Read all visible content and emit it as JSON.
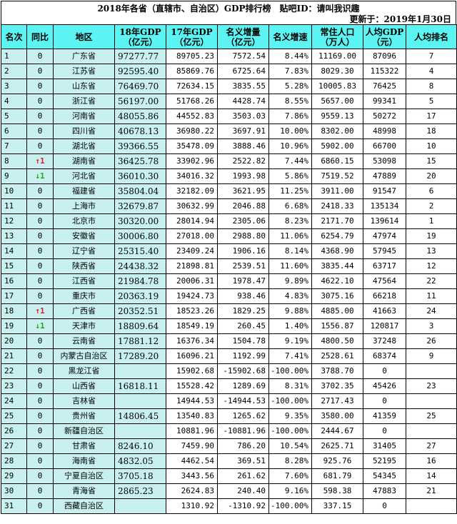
{
  "header": {
    "title": "2018年各省（直辖市、自治区）GDP排行榜　贴吧ID：请叫我识趣",
    "updated": "更新于：2019年1月30日"
  },
  "columns": {
    "rank": "名次",
    "yoy": "同比",
    "region": "地区",
    "gdp18_line1": "18年GDP",
    "gdp18_line2": "（亿元）",
    "gdp17_line1": "17年GDP",
    "gdp17_line2": "（亿元）",
    "inc_line1": "名义增量",
    "inc_line2": "（亿元）",
    "rate": "名义增速",
    "pop_line1": "常住人口",
    "pop_line2": "（万人）",
    "pc_line1": "人均GDP",
    "pc_line2": "（元）",
    "pcr": "人均排名"
  },
  "rows": [
    {
      "rank": "1",
      "yoy": "0",
      "region": "广东省",
      "gdp18": "97277.77",
      "gdp17": "89705.23",
      "inc": "7572.54",
      "rate": "8.44%",
      "pop": "11169.00",
      "pc": "87096",
      "pcr": "7"
    },
    {
      "rank": "2",
      "yoy": "0",
      "region": "江苏省",
      "gdp18": "92595.40",
      "gdp17": "85869.76",
      "inc": "6725.64",
      "rate": "7.83%",
      "pop": "8029.30",
      "pc": "115322",
      "pcr": "4"
    },
    {
      "rank": "3",
      "yoy": "0",
      "region": "山东省",
      "gdp18": "76469.70",
      "gdp17": "72634.15",
      "inc": "3835.55",
      "rate": "5.28%",
      "pop": "10005.83",
      "pc": "76425",
      "pcr": "8"
    },
    {
      "rank": "4",
      "yoy": "0",
      "region": "浙江省",
      "gdp18": "56197.00",
      "gdp17": "51768.26",
      "inc": "4428.74",
      "rate": "8.55%",
      "pop": "5657.00",
      "pc": "99341",
      "pcr": "5"
    },
    {
      "rank": "5",
      "yoy": "0",
      "region": "河南省",
      "gdp18": "48055.86",
      "gdp17": "44552.83",
      "inc": "3503.03",
      "rate": "7.86%",
      "pop": "9559.13",
      "pc": "50272",
      "pcr": "17"
    },
    {
      "rank": "6",
      "yoy": "0",
      "region": "四川省",
      "gdp18": "40678.13",
      "gdp17": "36980.22",
      "inc": "3697.91",
      "rate": "10.00%",
      "pop": "8302.00",
      "pc": "48998",
      "pcr": "18"
    },
    {
      "rank": "7",
      "yoy": "0",
      "region": "湖北省",
      "gdp18": "39366.55",
      "gdp17": "35478.09",
      "inc": "3888.46",
      "rate": "10.96%",
      "pop": "5902.00",
      "pc": "66700",
      "pcr": "10"
    },
    {
      "rank": "8",
      "yoy": "↑1",
      "yoy_dir": "up",
      "region": "湖南省",
      "gdp18": "36425.78",
      "gdp17": "33902.96",
      "inc": "2522.82",
      "rate": "7.44%",
      "pop": "6860.15",
      "pc": "53098",
      "pcr": "15"
    },
    {
      "rank": "9",
      "yoy": "↓1",
      "yoy_dir": "down",
      "region": "河北省",
      "gdp18": "36010.30",
      "gdp17": "34016.32",
      "inc": "1993.98",
      "rate": "5.86%",
      "pop": "7519.52",
      "pc": "47889",
      "pcr": "20"
    },
    {
      "rank": "10",
      "yoy": "0",
      "region": "福建省",
      "gdp18": "35804.04",
      "gdp17": "32182.09",
      "inc": "3621.95",
      "rate": "11.25%",
      "pop": "3911.00",
      "pc": "91547",
      "pcr": "6"
    },
    {
      "rank": "11",
      "yoy": "0",
      "region": "上海市",
      "gdp18": "32679.87",
      "gdp17": "30632.99",
      "inc": "2046.88",
      "rate": "6.68%",
      "pop": "2418.33",
      "pc": "135134",
      "pcr": "2"
    },
    {
      "rank": "12",
      "yoy": "0",
      "region": "北京市",
      "gdp18": "30320.00",
      "gdp17": "28014.94",
      "inc": "2305.06",
      "rate": "8.23%",
      "pop": "2171.70",
      "pc": "139614",
      "pcr": "1"
    },
    {
      "rank": "13",
      "yoy": "0",
      "region": "安徽省",
      "gdp18": "30006.80",
      "gdp17": "27018.00",
      "inc": "2988.80",
      "rate": "11.06%",
      "pop": "6254.79",
      "pc": "47974",
      "pcr": "19"
    },
    {
      "rank": "14",
      "yoy": "0",
      "region": "辽宁省",
      "gdp18": "25315.40",
      "gdp17": "23409.24",
      "inc": "1906.16",
      "rate": "8.14%",
      "pop": "4368.90",
      "pc": "57945",
      "pcr": "13"
    },
    {
      "rank": "15",
      "yoy": "0",
      "region": "陕西省",
      "gdp18": "24438.32",
      "gdp17": "21898.81",
      "inc": "2539.51",
      "rate": "11.60%",
      "pop": "3835.44",
      "pc": "63717",
      "pcr": "12"
    },
    {
      "rank": "16",
      "yoy": "0",
      "region": "江西省",
      "gdp18": "21984.78",
      "gdp17": "20006.31",
      "inc": "1978.47",
      "rate": "9.89%",
      "pop": "4622.10",
      "pc": "47564",
      "pcr": "22"
    },
    {
      "rank": "17",
      "yoy": "0",
      "region": "重庆市",
      "gdp18": "20363.19",
      "gdp17": "19424.73",
      "inc": "938.46",
      "rate": "4.83%",
      "pop": "3075.16",
      "pc": "66218",
      "pcr": "11"
    },
    {
      "rank": "18",
      "yoy": "↑1",
      "yoy_dir": "up",
      "region": "广西省",
      "gdp18": "20352.51",
      "gdp17": "18523.26",
      "inc": "1829.25",
      "rate": "9.88%",
      "pop": "4885.00",
      "pc": "41663",
      "pcr": "24"
    },
    {
      "rank": "19",
      "yoy": "↓1",
      "yoy_dir": "down",
      "region": "天津市",
      "gdp18": "18809.64",
      "gdp17": "18549.19",
      "inc": "260.45",
      "rate": "1.40%",
      "pop": "1556.87",
      "pc": "120817",
      "pcr": "3"
    },
    {
      "rank": "20",
      "yoy": "0",
      "region": "云南省",
      "gdp18": "17881.12",
      "gdp17": "16376.34",
      "inc": "1504.78",
      "rate": "9.19%",
      "pop": "4800.50",
      "pc": "37248",
      "pcr": "26"
    },
    {
      "rank": "21",
      "yoy": "0",
      "region": "内蒙古自治区",
      "gdp18": "17289.20",
      "gdp17": "16096.21",
      "inc": "1192.99",
      "rate": "7.41%",
      "pop": "2528.61",
      "pc": "68374",
      "pcr": "9"
    },
    {
      "rank": "22",
      "yoy": "0",
      "region": "黑龙江省",
      "gdp18": "",
      "gdp17": "15902.68",
      "inc": "-15902.68",
      "rate": "-100.00%",
      "pop": "3788.70",
      "pc": "0",
      "pcr": ""
    },
    {
      "rank": "23",
      "yoy": "0",
      "region": "山西省",
      "gdp18": "16818.11",
      "gdp17": "15528.42",
      "inc": "1289.69",
      "rate": "8.31%",
      "pop": "3702.35",
      "pc": "45426",
      "pcr": "23"
    },
    {
      "rank": "24",
      "yoy": "0",
      "region": "吉林省",
      "gdp18": "",
      "gdp17": "14944.53",
      "inc": "-14944.53",
      "rate": "-100.00%",
      "pop": "2717.43",
      "pc": "0",
      "pcr": ""
    },
    {
      "rank": "25",
      "yoy": "0",
      "region": "贵州省",
      "gdp18": "14806.45",
      "gdp17": "13540.83",
      "inc": "1265.62",
      "rate": "9.35%",
      "pop": "3580.00",
      "pc": "41359",
      "pcr": "25"
    },
    {
      "rank": "26",
      "yoy": "0",
      "region": "新疆自治区",
      "gdp18": "",
      "gdp17": "10881.96",
      "inc": "-10881.96",
      "rate": "-100.00%",
      "pop": "2444.67",
      "pc": "0",
      "pcr": ""
    },
    {
      "rank": "27",
      "yoy": "0",
      "region": "甘肃省",
      "gdp18": "8246.10",
      "gdp17": "7459.90",
      "inc": "786.20",
      "rate": "10.54%",
      "pop": "2625.71",
      "pc": "31405",
      "pcr": "27"
    },
    {
      "rank": "28",
      "yoy": "0",
      "region": "海南省",
      "gdp18": "4832.05",
      "gdp17": "4462.54",
      "inc": "369.51",
      "rate": "8.28%",
      "pop": "925.76",
      "pc": "52195",
      "pcr": "16"
    },
    {
      "rank": "29",
      "yoy": "0",
      "region": "宁夏自治区",
      "gdp18": "3705.18",
      "gdp17": "3443.56",
      "inc": "261.62",
      "rate": "7.60%",
      "pop": "681.79",
      "pc": "54345",
      "pcr": "14"
    },
    {
      "rank": "30",
      "yoy": "0",
      "region": "青海省",
      "gdp18": "2865.23",
      "gdp17": "2624.83",
      "inc": "240.40",
      "rate": "9.16%",
      "pop": "598.38",
      "pc": "47883",
      "pcr": "21"
    },
    {
      "rank": "31",
      "yoy": "0",
      "region": "西藏自治区",
      "gdp18": "",
      "gdp17": "1310.92",
      "inc": "-1310.92",
      "rate": "-100.00%",
      "pop": "337.15",
      "pc": "0",
      "pcr": ""
    }
  ]
}
